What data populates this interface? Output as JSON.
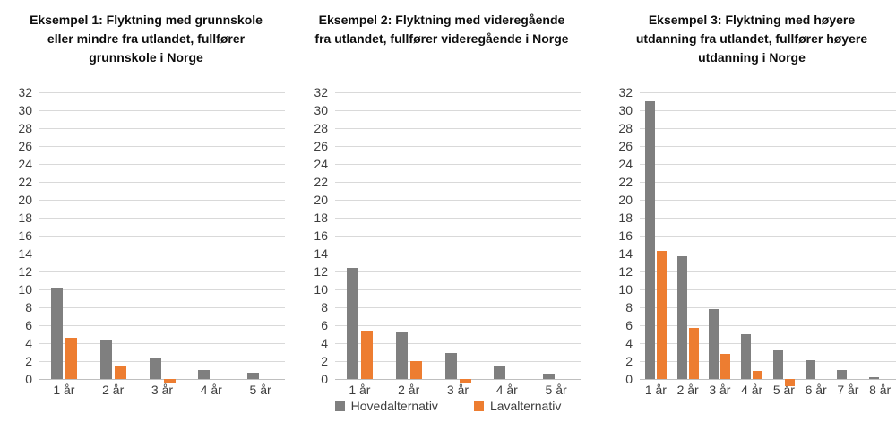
{
  "legend": {
    "items": [
      {
        "label": "Hovedalternativ",
        "color": "#7f7f7f"
      },
      {
        "label": "Lavalternativ",
        "color": "#ed7d31"
      }
    ]
  },
  "chart_data": [
    {
      "type": "bar",
      "title": "Eksempel 1: Flyktning med grunnskole eller mindre fra utlandet, fullfører grunnskole i Norge",
      "title_lines": [
        "Eksempel 1: Flyktning med grunnskole",
        "eller mindre fra utlandet, fullfører",
        "grunnskole i Norge"
      ],
      "categories": [
        "1 år",
        "2 år",
        "3 år",
        "4 år",
        "5 år"
      ],
      "series": [
        {
          "name": "Hovedalternativ",
          "color": "#7f7f7f",
          "values": [
            10.2,
            4.4,
            2.4,
            1.0,
            0.7
          ]
        },
        {
          "name": "Lavalternativ",
          "color": "#ed7d31",
          "values": [
            4.6,
            1.4,
            -0.5,
            0,
            0
          ]
        }
      ],
      "ylim": [
        0,
        32
      ],
      "ytick_step": 2,
      "grid": true,
      "legend_position": "shared-bottom"
    },
    {
      "type": "bar",
      "title": "Eksempel 2: Flyktning med videregående fra utlandet, fullfører videregående i Norge",
      "title_lines": [
        "Eksempel 2: Flyktning med videregående",
        "fra utlandet, fullfører videregående i Norge"
      ],
      "categories": [
        "1 år",
        "2 år",
        "3 år",
        "4 år",
        "5 år"
      ],
      "series": [
        {
          "name": "Hovedalternativ",
          "color": "#7f7f7f",
          "values": [
            12.4,
            5.2,
            2.9,
            1.5,
            0.6
          ]
        },
        {
          "name": "Lavalternativ",
          "color": "#ed7d31",
          "values": [
            5.4,
            2.0,
            -0.4,
            0,
            0
          ]
        }
      ],
      "ylim": [
        0,
        32
      ],
      "ytick_step": 2,
      "grid": true,
      "legend_position": "shared-bottom"
    },
    {
      "type": "bar",
      "title": "Eksempel 3: Flyktning med høyere utdanning fra utlandet, fullfører høyere utdanning i Norge",
      "title_lines": [
        "Eksempel 3: Flyktning med høyere",
        "utdanning fra utlandet, fullfører høyere",
        "utdanning i Norge"
      ],
      "categories": [
        "1 år",
        "2 år",
        "3 år",
        "4 år",
        "5 år",
        "6 år",
        "7 år",
        "8 år"
      ],
      "series": [
        {
          "name": "Hovedalternativ",
          "color": "#7f7f7f",
          "values": [
            31.0,
            13.7,
            7.8,
            5.0,
            3.2,
            2.1,
            1.0,
            0.2
          ]
        },
        {
          "name": "Lavalternativ",
          "color": "#ed7d31",
          "values": [
            14.3,
            5.7,
            2.8,
            0.9,
            -0.8,
            0,
            0,
            0
          ]
        }
      ],
      "ylim": [
        0,
        32
      ],
      "ytick_step": 2,
      "grid": true,
      "legend_position": "shared-bottom"
    }
  ]
}
